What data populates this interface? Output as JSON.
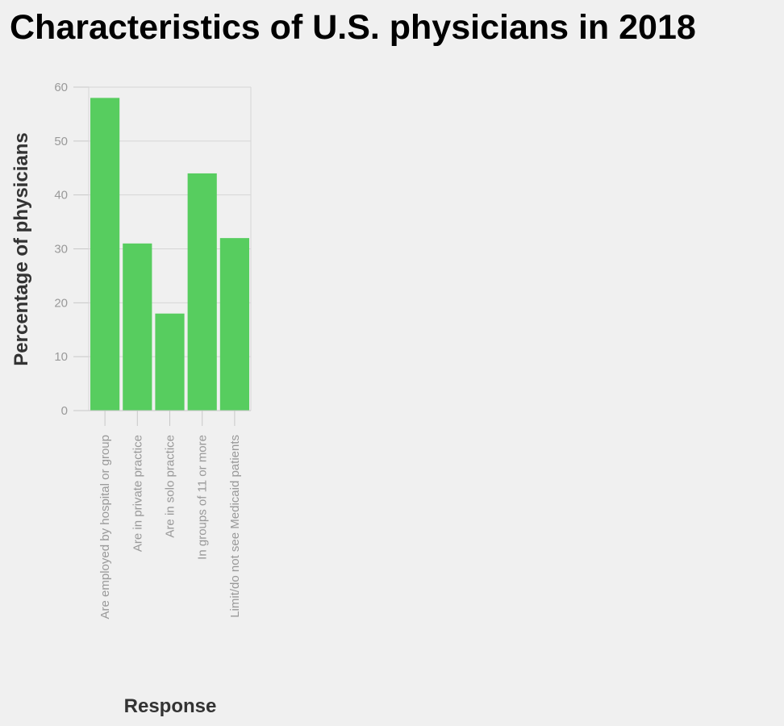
{
  "chart_data": {
    "type": "bar",
    "title": "Characteristics of U.S. physicians in 2018",
    "xlabel": "Response",
    "ylabel": "Percentage of physicians",
    "categories": [
      "Are employed by hospital or group",
      "Are in private practice",
      "Are in solo practice",
      "In groups of 11 or more",
      "Limit/do not see Medicaid patients"
    ],
    "values": [
      58,
      31,
      18,
      44,
      32
    ],
    "ylim": [
      0,
      60
    ],
    "yticks": [
      0,
      10,
      20,
      30,
      40,
      50,
      60
    ],
    "grid": true,
    "bar_color": "#57cd5f"
  }
}
